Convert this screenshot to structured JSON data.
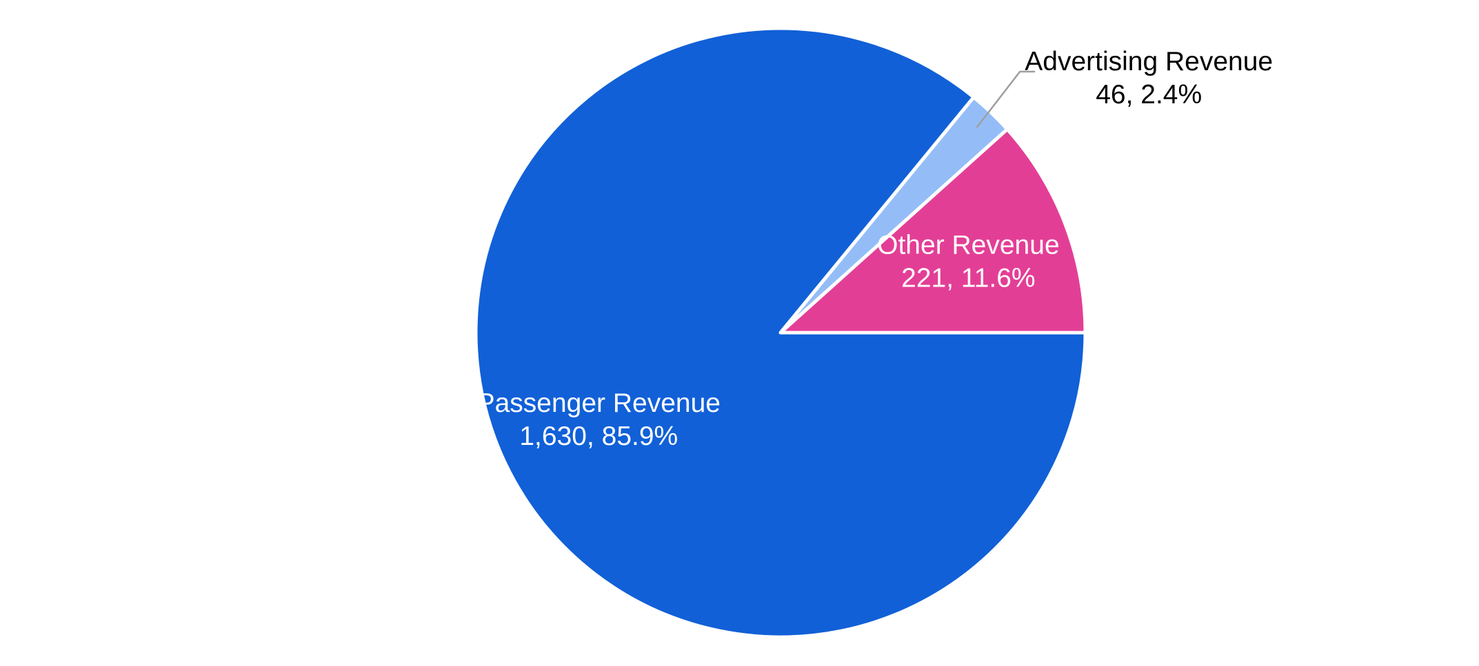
{
  "chart_data": {
    "type": "pie",
    "title": "",
    "slices": [
      {
        "label": "Other Revenue",
        "value": 221,
        "value_text": "221",
        "percent_text": "11.6%",
        "color": "#E33E96",
        "label_color": "#FFFFFF",
        "label_placement": "inside"
      },
      {
        "label": "Advertising Revenue",
        "value": 46,
        "value_text": "46",
        "percent_text": "2.4%",
        "color": "#94BDF7",
        "label_color": "#000000",
        "label_placement": "outside"
      },
      {
        "label": "Passenger Revenue",
        "value": 1630,
        "value_text": "1,630",
        "percent_text": "85.9%",
        "color": "#1160D7",
        "label_color": "#FFFFFF",
        "label_placement": "inside"
      }
    ],
    "start_angle": "3 o'clock",
    "direction": "counterclockwise",
    "separator_color": "#FFFFFF",
    "leader_line_color": "#9E9E9E",
    "legend": "none"
  }
}
